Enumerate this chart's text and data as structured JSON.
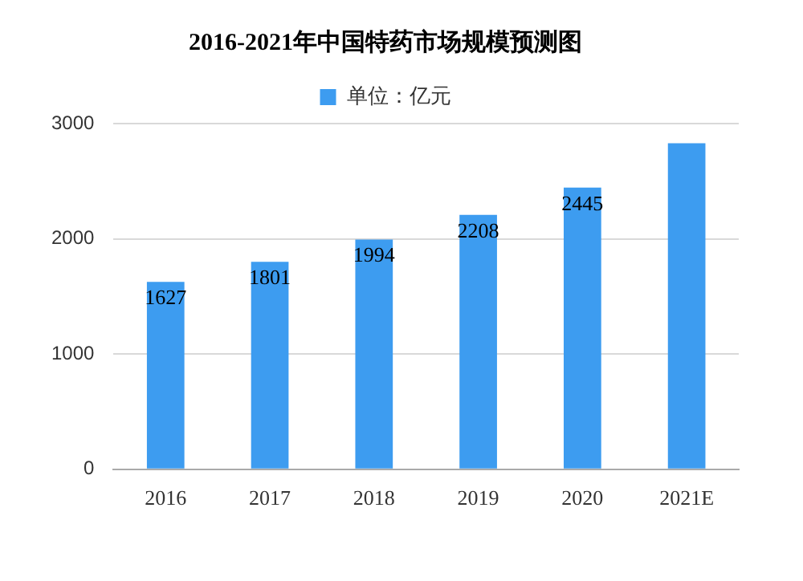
{
  "chart_data": {
    "type": "bar",
    "title": "2016-2021年中国特药市场规模预测图",
    "categories": [
      "2016",
      "2017",
      "2018",
      "2019",
      "2020",
      "2021E"
    ],
    "series": [
      {
        "name": "单位：亿元",
        "color": "#3d9cf0",
        "values": [
          1627,
          1801,
          1994,
          2208,
          2445,
          2830
        ],
        "value_labels": [
          "1627",
          "1801",
          "1994",
          "2208",
          "2445",
          null
        ]
      }
    ],
    "ylim": [
      0,
      3000
    ],
    "yticks": [
      0,
      1000,
      2000,
      3000
    ],
    "grid": "y",
    "legend": "top"
  }
}
